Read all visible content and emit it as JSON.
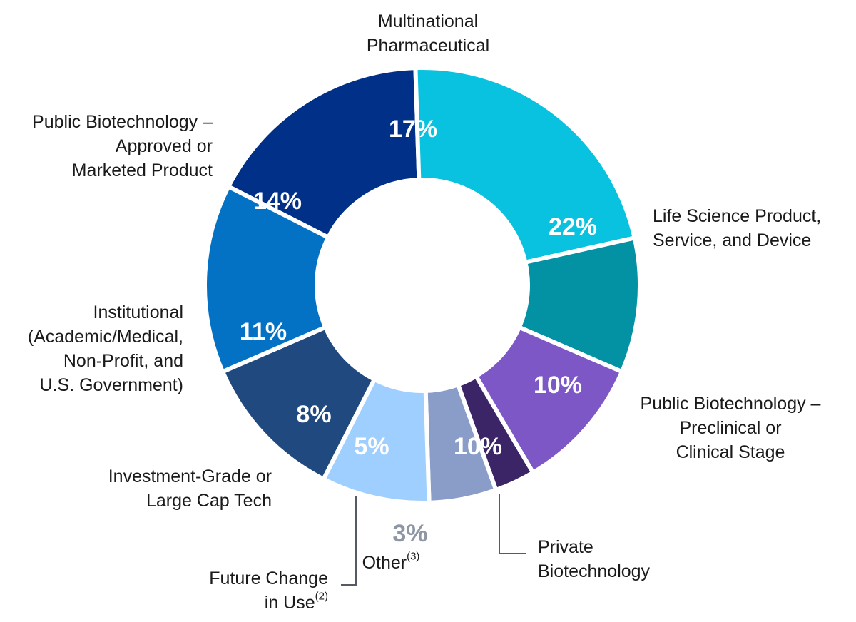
{
  "chart_data": {
    "type": "pie",
    "variant": "donut",
    "slices": [
      {
        "label_lines": [
          "Multinational",
          "Pharmaceutical"
        ],
        "value": 17,
        "value_label": "17%",
        "color": "#003087"
      },
      {
        "label_lines": [
          "Life Science Product,",
          "Service, and Device"
        ],
        "value": 22,
        "value_label": "22%",
        "color": "#08c2df"
      },
      {
        "label_lines": [
          "Public Biotechnology –",
          "Preclinical or",
          "Clinical Stage"
        ],
        "value": 10,
        "value_label": "10%",
        "color": "#0391a4"
      },
      {
        "label_lines": [
          "Private",
          "Biotechnology"
        ],
        "value": 10,
        "value_label": "10%",
        "color": "#7e57c7"
      },
      {
        "label_lines": [
          "Other"
        ],
        "label_sup": "(3)",
        "value": 3,
        "value_label": "3%",
        "color": "#3b2566"
      },
      {
        "label_lines": [
          "Future Change",
          "in Use"
        ],
        "label_sup": "(2)",
        "value": 5,
        "value_label": "5%",
        "color": "#8a9dc8"
      },
      {
        "label_lines": [
          "Investment-Grade or",
          "Large Cap Tech"
        ],
        "value": 8,
        "value_label": "8%",
        "color": "#9fcfff"
      },
      {
        "label_lines": [
          "Institutional",
          "(Academic/Medical,",
          "Non-Profit, and",
          "U.S. Government)"
        ],
        "value": 11,
        "value_label": "11%",
        "color": "#204a7f"
      },
      {
        "label_lines": [
          "Public Biotechnology –",
          "Approved or",
          "Marketed Product"
        ],
        "value": 14,
        "value_label": "14%",
        "color": "#0472c4"
      }
    ],
    "legend": "none"
  }
}
